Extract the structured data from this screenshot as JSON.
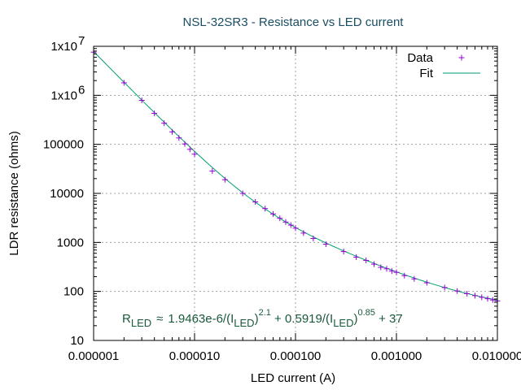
{
  "chart_data": {
    "type": "scatter",
    "title": "NSL-32SR3 - Resistance vs LED current",
    "xlabel": "LED current (A)",
    "ylabel": "LDR resistance (ohms)",
    "xscale": "log",
    "yscale": "log",
    "xlim": [
      1e-06,
      0.01
    ],
    "ylim": [
      10,
      10000000
    ],
    "grid": true,
    "legend_position": "top-right",
    "x_ticks": [
      {
        "value": 1e-06,
        "label": "0.000001"
      },
      {
        "value": 1e-05,
        "label": "0.000010"
      },
      {
        "value": 0.0001,
        "label": "0.000100"
      },
      {
        "value": 0.001,
        "label": "0.001000"
      },
      {
        "value": 0.01,
        "label": "0.010000"
      }
    ],
    "y_ticks": [
      {
        "value": 10,
        "label": "10"
      },
      {
        "value": 100,
        "label": "100"
      },
      {
        "value": 1000,
        "label": "1000"
      },
      {
        "value": 10000,
        "label": "10000"
      },
      {
        "value": 100000,
        "label": "100000"
      },
      {
        "value": 1000000,
        "base": "1x10",
        "exp": "6"
      },
      {
        "value": 10000000,
        "base": "1x10",
        "exp": "7"
      }
    ],
    "series": [
      {
        "name": "Data",
        "style": "points",
        "color": "#9400d3",
        "x": [
          1e-06,
          2e-06,
          3e-06,
          4e-06,
          5e-06,
          6e-06,
          7e-06,
          8e-06,
          9e-06,
          1e-05,
          1.5e-05,
          2e-05,
          3e-05,
          4e-05,
          5e-05,
          6e-05,
          7e-05,
          8e-05,
          9e-05,
          0.0001,
          0.00012,
          0.00015,
          0.0002,
          0.0003,
          0.0004,
          0.0005,
          0.0006,
          0.0007,
          0.0008,
          0.0009,
          0.001,
          0.0012,
          0.0015,
          0.002,
          0.003,
          0.004,
          0.005,
          0.006,
          0.007,
          0.008,
          0.009,
          0.01
        ],
        "y": [
          7600000,
          1800000,
          790000,
          430000,
          270000,
          180000,
          135000,
          102000,
          79000,
          63000,
          28500,
          19000,
          10000,
          6700,
          4900,
          3800,
          3100,
          2600,
          2250,
          1950,
          1550,
          1200,
          920,
          650,
          500,
          430,
          360,
          310,
          290,
          260,
          245,
          210,
          180,
          150,
          120,
          102,
          90,
          82,
          76,
          71,
          67,
          64
        ]
      },
      {
        "name": "Fit",
        "style": "line",
        "color": "#009e73",
        "formula": "1.9463e-6/(I^2.1) + 0.5919/(I^0.85) + 37"
      }
    ],
    "annotation": {
      "R": "R",
      "R_sub": "LED",
      "approx": "≈",
      "c1": "1.9463e-6/",
      "paren_open": "(I",
      "sub": "LED",
      "paren_close": ")",
      "exp1": "2.1",
      "c2": " + 0.5919/",
      "exp2": "0.85",
      "c3": " + 37"
    }
  },
  "colors": {
    "title": "#1a4e63",
    "annotation": "#1a5a3c",
    "grid": "#a0a0a0",
    "axis": "#000000"
  }
}
